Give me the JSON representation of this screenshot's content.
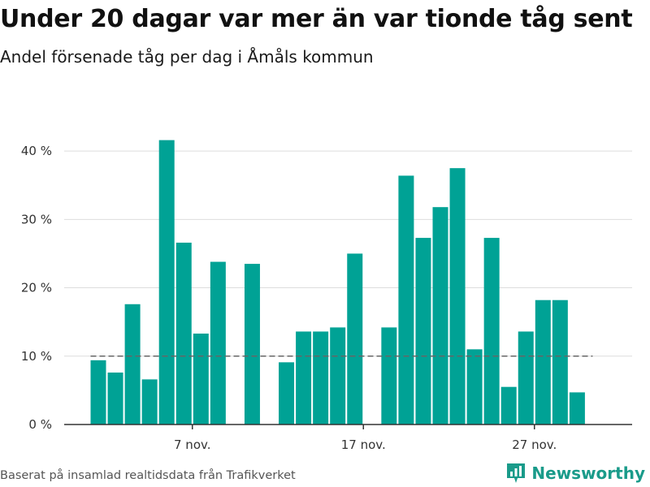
{
  "header": {
    "title": "Under 20 dagar var mer än var tionde tåg sent",
    "subtitle": "Andel försenade tåg per dag i Åmåls kommun"
  },
  "footer": {
    "source": "Baserat på insamlad realtidsdata från Trafikverket",
    "brand": "Newsworthy"
  },
  "colors": {
    "bar": "#00a295",
    "brand": "#1a9b8a",
    "reference_line": "#666666",
    "grid": "#dddddd"
  },
  "chart_data": {
    "type": "bar",
    "title": "Under 20 dagar var mer än var tionde tåg sent",
    "subtitle": "Andel försenade tåg per dag i Åmåls kommun",
    "xlabel": "",
    "ylabel": "",
    "ylim": [
      0,
      45
    ],
    "y_ticks": [
      0,
      10,
      20,
      30,
      40
    ],
    "y_tick_labels": [
      "0 %",
      "10 %",
      "20 %",
      "30 %",
      "40 %"
    ],
    "x_tick_labels": [
      "7 nov.",
      "17 nov.",
      "27 nov."
    ],
    "x_tick_dates": [
      "2023-11-07",
      "2023-11-17",
      "2023-11-27"
    ],
    "grid": true,
    "reference_line": 10,
    "x": [
      "2023-11-02",
      "2023-11-03",
      "2023-11-04",
      "2023-11-05",
      "2023-11-06",
      "2023-11-07",
      "2023-11-08",
      "2023-11-09",
      "2023-11-10",
      "2023-11-11",
      "2023-11-12",
      "2023-11-13",
      "2023-11-14",
      "2023-11-15",
      "2023-11-16",
      "2023-11-17",
      "2023-11-18",
      "2023-11-19",
      "2023-11-20",
      "2023-11-21",
      "2023-11-22",
      "2023-11-23",
      "2023-11-24",
      "2023-11-25",
      "2023-11-26",
      "2023-11-27",
      "2023-11-28",
      "2023-11-29",
      "2023-11-30"
    ],
    "values": [
      9.4,
      7.6,
      17.6,
      6.6,
      41.6,
      26.6,
      13.3,
      23.8,
      null,
      23.5,
      null,
      9.1,
      13.6,
      13.6,
      14.2,
      25.0,
      null,
      14.2,
      36.4,
      27.3,
      31.8,
      37.5,
      11.0,
      27.3,
      5.5,
      13.6,
      18.2,
      18.2,
      4.7
    ]
  }
}
